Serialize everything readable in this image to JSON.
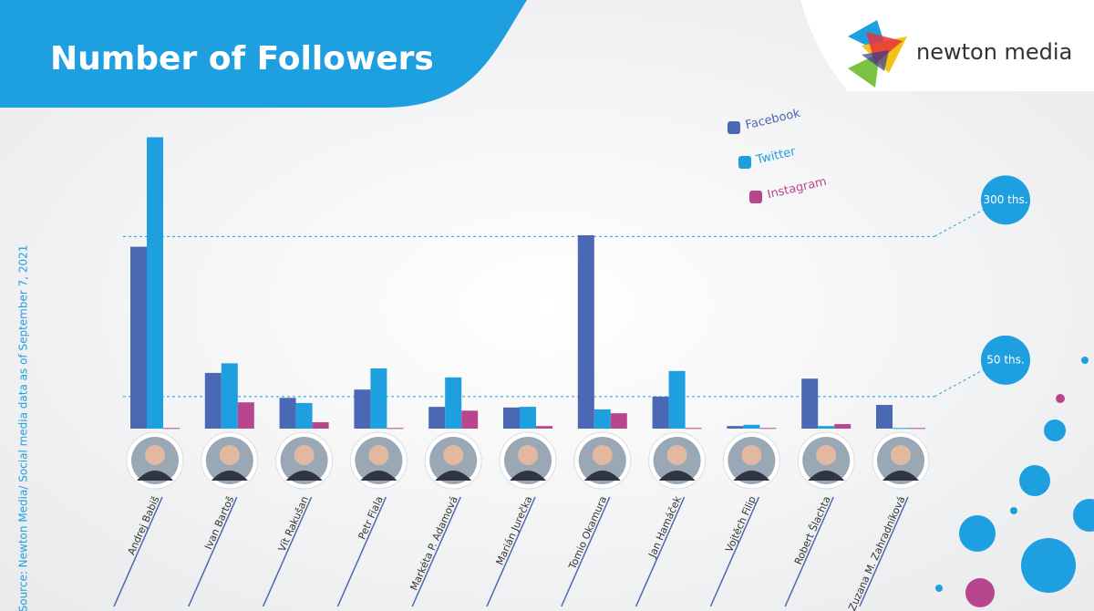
{
  "chart_data": {
    "type": "bar",
    "title": "Number of Followers",
    "brand": "newton media",
    "source": "Source: Newton Media/ Social media data as of September 7, 2021",
    "categories": [
      "Andrej Babiš",
      "Ivan Bartoš",
      "Vít Rakušan",
      "Petr Fiala",
      "Markéta P. Adamová",
      "Marián Jurečka",
      "Tomio Okamura",
      "Jan Hamáček",
      "Vojtěch Filip",
      "Robert Šlachta",
      "Zuzana M. Zahradníková"
    ],
    "series": [
      {
        "name": "Facebook",
        "color": "#4a68b3",
        "values": [
          284,
          87,
          48,
          61,
          34,
          33,
          302,
          50,
          4,
          78,
          37
        ]
      },
      {
        "name": "Twitter",
        "color": "#1e9fe0",
        "values": [
          455,
          102,
          40,
          94,
          80,
          34,
          30,
          90,
          6,
          4,
          1
        ]
      },
      {
        "name": "Instagram",
        "color": "#b8468f",
        "values": [
          1,
          41,
          10,
          1,
          28,
          4,
          24,
          1,
          1,
          7,
          1
        ]
      }
    ],
    "ylim": [
      0,
      460
    ],
    "yticks": [
      {
        "value": 50,
        "label": "50 ths."
      },
      {
        "value": 300,
        "label": "300 ths."
      }
    ]
  }
}
